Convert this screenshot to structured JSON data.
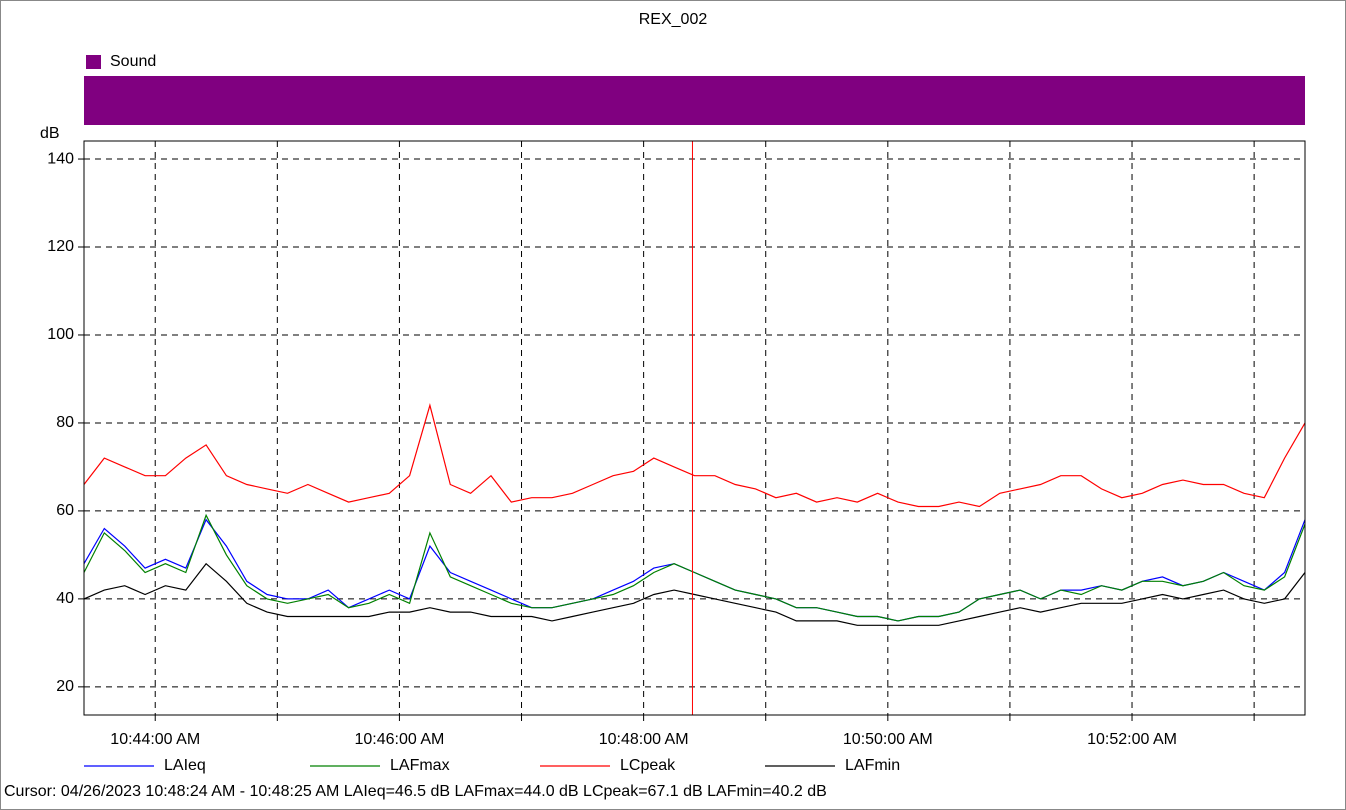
{
  "chart_data": {
    "type": "line",
    "title": "REX_002",
    "y_label": "dB",
    "band": {
      "name": "Sound",
      "color": "#800080"
    },
    "x": [
      "10:43:25 AM",
      "10:43:35 AM",
      "10:43:45 AM",
      "10:43:55 AM",
      "10:44:05 AM",
      "10:44:15 AM",
      "10:44:25 AM",
      "10:44:35 AM",
      "10:44:45 AM",
      "10:44:55 AM",
      "10:45:05 AM",
      "10:45:15 AM",
      "10:45:25 AM",
      "10:45:35 AM",
      "10:45:45 AM",
      "10:45:55 AM",
      "10:46:05 AM",
      "10:46:15 AM",
      "10:46:25 AM",
      "10:46:35 AM",
      "10:46:45 AM",
      "10:46:55 AM",
      "10:47:05 AM",
      "10:47:15 AM",
      "10:47:25 AM",
      "10:47:35 AM",
      "10:47:45 AM",
      "10:47:55 AM",
      "10:48:05 AM",
      "10:48:15 AM",
      "10:48:25 AM",
      "10:48:35 AM",
      "10:48:45 AM",
      "10:48:55 AM",
      "10:49:05 AM",
      "10:49:15 AM",
      "10:49:25 AM",
      "10:49:35 AM",
      "10:49:45 AM",
      "10:49:55 AM",
      "10:50:05 AM",
      "10:50:15 AM",
      "10:50:25 AM",
      "10:50:35 AM",
      "10:50:45 AM",
      "10:50:55 AM",
      "10:51:05 AM",
      "10:51:15 AM",
      "10:51:25 AM",
      "10:51:35 AM",
      "10:51:45 AM",
      "10:51:55 AM",
      "10:52:05 AM",
      "10:52:15 AM",
      "10:52:25 AM",
      "10:52:35 AM",
      "10:52:45 AM",
      "10:52:55 AM",
      "10:53:05 AM",
      "10:53:15 AM",
      "10:53:25 AM"
    ],
    "series": [
      {
        "name": "LAIeq",
        "color": "#0000ff",
        "values": [
          48,
          56,
          52,
          47,
          49,
          47,
          58,
          52,
          44,
          41,
          40,
          40,
          42,
          38,
          40,
          42,
          40,
          52,
          46,
          44,
          42,
          40,
          38,
          38,
          39,
          40,
          42,
          44,
          47,
          48,
          46,
          44,
          42,
          41,
          40,
          38,
          38,
          37,
          36,
          36,
          35,
          36,
          36,
          37,
          40,
          41,
          42,
          40,
          42,
          42,
          43,
          42,
          44,
          45,
          43,
          44,
          46,
          44,
          42,
          46,
          58
        ]
      },
      {
        "name": "LAFmax",
        "color": "#008000",
        "values": [
          46,
          55,
          51,
          46,
          48,
          46,
          59,
          50,
          43,
          40,
          39,
          40,
          41,
          38,
          39,
          41,
          39,
          55,
          45,
          43,
          41,
          39,
          38,
          38,
          39,
          40,
          41,
          43,
          46,
          48,
          46,
          44,
          42,
          41,
          40,
          38,
          38,
          37,
          36,
          36,
          35,
          36,
          36,
          37,
          40,
          41,
          42,
          40,
          42,
          41,
          43,
          42,
          44,
          44,
          43,
          44,
          46,
          43,
          42,
          45,
          57
        ]
      },
      {
        "name": "LCpeak",
        "color": "#ff0000",
        "values": [
          66,
          72,
          70,
          68,
          68,
          72,
          75,
          68,
          66,
          65,
          64,
          66,
          64,
          62,
          63,
          64,
          68,
          84,
          66,
          64,
          68,
          62,
          63,
          63,
          64,
          66,
          68,
          69,
          72,
          70,
          68,
          68,
          66,
          65,
          63,
          64,
          62,
          63,
          62,
          64,
          62,
          61,
          61,
          62,
          61,
          64,
          65,
          66,
          68,
          68,
          65,
          63,
          64,
          66,
          67,
          66,
          66,
          64,
          63,
          72,
          80
        ]
      },
      {
        "name": "LAFmin",
        "color": "#000000",
        "values": [
          40,
          42,
          43,
          41,
          43,
          42,
          48,
          44,
          39,
          37,
          36,
          36,
          36,
          36,
          36,
          37,
          37,
          38,
          37,
          37,
          36,
          36,
          36,
          35,
          36,
          37,
          38,
          39,
          41,
          42,
          41,
          40,
          39,
          38,
          37,
          35,
          35,
          35,
          34,
          34,
          34,
          34,
          34,
          35,
          36,
          37,
          38,
          37,
          38,
          39,
          39,
          39,
          40,
          41,
          40,
          41,
          42,
          40,
          39,
          40,
          46
        ]
      }
    ],
    "xlim": [
      "10:43:25 AM",
      "10:53:25 AM"
    ],
    "xticks": [
      "10:44:00 AM",
      "10:46:00 AM",
      "10:48:00 AM",
      "10:50:00 AM",
      "10:52:00 AM"
    ],
    "xgrid_minor": [
      "10:45:00 AM",
      "10:47:00 AM",
      "10:49:00 AM",
      "10:51:00 AM",
      "10:53:00 AM"
    ],
    "ylim": [
      13.6,
      144.1
    ],
    "yticks": [
      20,
      40,
      60,
      80,
      100,
      120,
      140
    ],
    "grid": true,
    "cursor": {
      "x": "10:48:24 AM",
      "color": "#ff0000",
      "label": "Cursor: 04/26/2023 10:48:24 AM - 10:48:25 AM  LAIeq=46.5 dB  LAFmax=44.0 dB  LCpeak=67.1 dB  LAFmin=40.2 dB"
    }
  }
}
